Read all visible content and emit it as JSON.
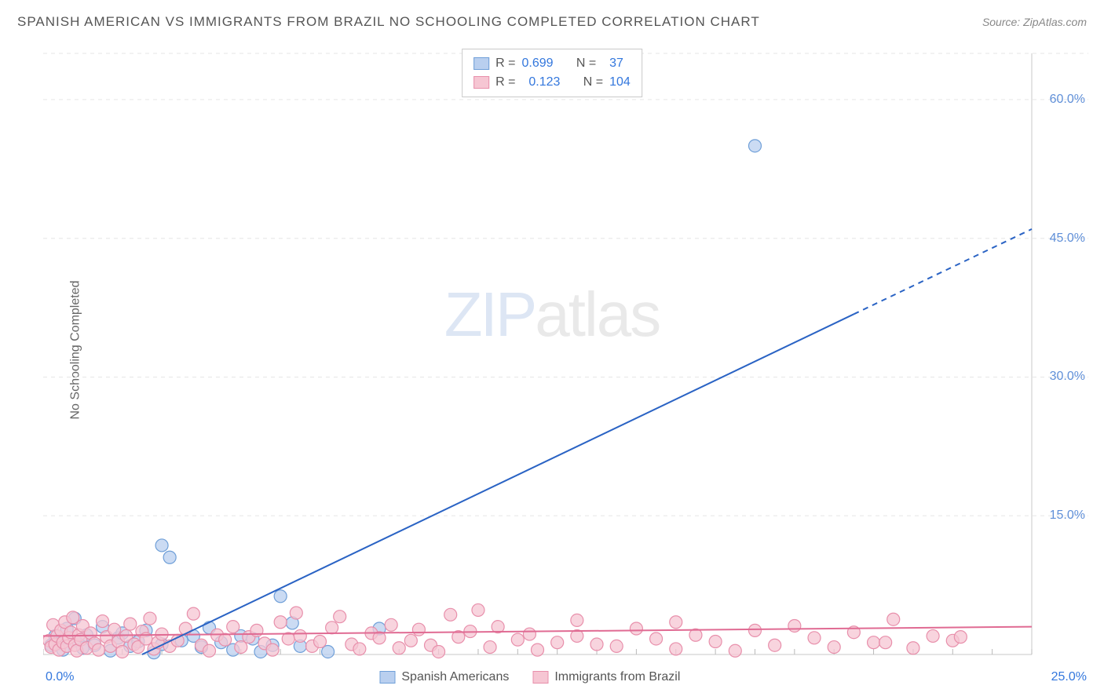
{
  "title": "SPANISH AMERICAN VS IMMIGRANTS FROM BRAZIL NO SCHOOLING COMPLETED CORRELATION CHART",
  "source": "Source: ZipAtlas.com",
  "y_axis_label": "No Schooling Completed",
  "watermark": {
    "part1": "ZIP",
    "part2": "atlas"
  },
  "chart": {
    "type": "scatter",
    "xlim": [
      0,
      25
    ],
    "ylim": [
      0,
      65
    ],
    "x_origin_label": "0.0%",
    "x_max_label": "25.0%",
    "y_ticks": [
      15.0,
      30.0,
      45.0,
      60.0
    ],
    "y_tick_labels": [
      "15.0%",
      "30.0%",
      "45.0%",
      "60.0%"
    ],
    "grid_color": "#e6e6e6",
    "axis_color": "#c9c9c9",
    "tick_color": "#b9b9b9",
    "background_color": "#ffffff",
    "x_minor_ticks_step": 1,
    "series": [
      {
        "name": "Spanish Americans",
        "legend_label": "Spanish Americans",
        "marker_fill": "#b9cfef",
        "marker_stroke": "#6f9fd8",
        "marker_radius": 8,
        "line_color": "#2a63c4",
        "line_width": 2,
        "trend": {
          "x1": 2.5,
          "y1": 0,
          "x2": 25,
          "y2": 46,
          "dash_after_x": 20.5
        },
        "R": "0.699",
        "N": "37",
        "points": [
          [
            0.2,
            1.0
          ],
          [
            0.3,
            2.0
          ],
          [
            0.4,
            1.2
          ],
          [
            0.5,
            0.5
          ],
          [
            0.6,
            2.8
          ],
          [
            0.8,
            1.5
          ],
          [
            0.8,
            3.9
          ],
          [
            1.0,
            0.7
          ],
          [
            1.1,
            2.1
          ],
          [
            1.3,
            1.0
          ],
          [
            1.5,
            3.0
          ],
          [
            1.7,
            0.4
          ],
          [
            1.9,
            1.8
          ],
          [
            2.0,
            2.3
          ],
          [
            2.2,
            0.9
          ],
          [
            2.4,
            1.4
          ],
          [
            2.6,
            2.6
          ],
          [
            2.8,
            0.2
          ],
          [
            3.0,
            1.1
          ],
          [
            3.0,
            11.8
          ],
          [
            3.2,
            10.5
          ],
          [
            3.5,
            1.5
          ],
          [
            3.8,
            2.0
          ],
          [
            4.0,
            0.8
          ],
          [
            4.2,
            2.9
          ],
          [
            4.5,
            1.3
          ],
          [
            4.8,
            0.5
          ],
          [
            5.0,
            2.0
          ],
          [
            5.3,
            1.7
          ],
          [
            5.5,
            0.3
          ],
          [
            5.8,
            1.0
          ],
          [
            6.0,
            6.3
          ],
          [
            6.3,
            3.4
          ],
          [
            6.5,
            0.9
          ],
          [
            7.2,
            0.3
          ],
          [
            8.5,
            2.8
          ],
          [
            18.0,
            55.0
          ]
        ]
      },
      {
        "name": "Immigrants from Brazil",
        "legend_label": "Immigrants from Brazil",
        "marker_fill": "#f6c6d3",
        "marker_stroke": "#e88fab",
        "marker_radius": 8,
        "line_color": "#e06b93",
        "line_width": 2,
        "trend": {
          "x1": 0,
          "y1": 2.0,
          "x2": 25,
          "y2": 3.0
        },
        "R": "0.123",
        "N": "104",
        "points": [
          [
            0.15,
            1.5
          ],
          [
            0.2,
            0.8
          ],
          [
            0.25,
            3.2
          ],
          [
            0.3,
            1.1
          ],
          [
            0.35,
            2.0
          ],
          [
            0.4,
            0.5
          ],
          [
            0.45,
            2.6
          ],
          [
            0.5,
            1.3
          ],
          [
            0.55,
            3.5
          ],
          [
            0.6,
            0.9
          ],
          [
            0.65,
            1.8
          ],
          [
            0.7,
            2.4
          ],
          [
            0.75,
            4.0
          ],
          [
            0.8,
            1.0
          ],
          [
            0.85,
            0.4
          ],
          [
            0.9,
            2.1
          ],
          [
            0.95,
            1.6
          ],
          [
            1.0,
            3.1
          ],
          [
            1.1,
            0.7
          ],
          [
            1.2,
            2.3
          ],
          [
            1.3,
            1.2
          ],
          [
            1.4,
            0.5
          ],
          [
            1.5,
            3.6
          ],
          [
            1.6,
            1.9
          ],
          [
            1.7,
            0.9
          ],
          [
            1.8,
            2.7
          ],
          [
            1.9,
            1.4
          ],
          [
            2.0,
            0.3
          ],
          [
            2.1,
            2.0
          ],
          [
            2.2,
            3.3
          ],
          [
            2.3,
            1.1
          ],
          [
            2.4,
            0.8
          ],
          [
            2.5,
            2.5
          ],
          [
            2.6,
            1.7
          ],
          [
            2.7,
            3.9
          ],
          [
            2.8,
            0.6
          ],
          [
            2.9,
            1.3
          ],
          [
            3.0,
            2.2
          ],
          [
            3.2,
            0.9
          ],
          [
            3.4,
            1.5
          ],
          [
            3.6,
            2.8
          ],
          [
            3.8,
            4.4
          ],
          [
            4.0,
            1.0
          ],
          [
            4.2,
            0.4
          ],
          [
            4.4,
            2.1
          ],
          [
            4.6,
            1.6
          ],
          [
            4.8,
            3.0
          ],
          [
            5.0,
            0.8
          ],
          [
            5.2,
            1.9
          ],
          [
            5.4,
            2.6
          ],
          [
            5.6,
            1.2
          ],
          [
            5.8,
            0.5
          ],
          [
            6.0,
            3.5
          ],
          [
            6.2,
            1.7
          ],
          [
            6.4,
            4.5
          ],
          [
            6.5,
            2.0
          ],
          [
            6.8,
            0.9
          ],
          [
            7.0,
            1.4
          ],
          [
            7.3,
            2.9
          ],
          [
            7.5,
            4.1
          ],
          [
            7.8,
            1.1
          ],
          [
            8.0,
            0.6
          ],
          [
            8.3,
            2.3
          ],
          [
            8.5,
            1.8
          ],
          [
            8.8,
            3.2
          ],
          [
            9.0,
            0.7
          ],
          [
            9.3,
            1.5
          ],
          [
            9.5,
            2.7
          ],
          [
            9.8,
            1.0
          ],
          [
            10.0,
            0.3
          ],
          [
            10.3,
            4.3
          ],
          [
            10.5,
            1.9
          ],
          [
            10.8,
            2.5
          ],
          [
            11.0,
            4.8
          ],
          [
            11.3,
            0.8
          ],
          [
            11.5,
            3.0
          ],
          [
            12.0,
            1.6
          ],
          [
            12.3,
            2.2
          ],
          [
            12.5,
            0.5
          ],
          [
            13.0,
            1.3
          ],
          [
            13.5,
            3.7
          ],
          [
            13.5,
            2.0
          ],
          [
            14.0,
            1.1
          ],
          [
            14.5,
            0.9
          ],
          [
            15.0,
            2.8
          ],
          [
            15.5,
            1.7
          ],
          [
            16.0,
            3.5
          ],
          [
            16.0,
            0.6
          ],
          [
            16.5,
            2.1
          ],
          [
            17.0,
            1.4
          ],
          [
            17.5,
            0.4
          ],
          [
            18.0,
            2.6
          ],
          [
            18.5,
            1.0
          ],
          [
            19.0,
            3.1
          ],
          [
            19.5,
            1.8
          ],
          [
            20.0,
            0.8
          ],
          [
            20.5,
            2.4
          ],
          [
            21.0,
            1.3
          ],
          [
            21.3,
            1.3
          ],
          [
            21.5,
            3.8
          ],
          [
            22.0,
            0.7
          ],
          [
            22.5,
            2.0
          ],
          [
            23.0,
            1.5
          ],
          [
            23.2,
            1.9
          ]
        ]
      }
    ]
  },
  "stats_box": {
    "r_label": "R =",
    "n_label": "N ="
  },
  "legend": {
    "series1_label": "Spanish Americans",
    "series2_label": "Immigrants from Brazil"
  }
}
